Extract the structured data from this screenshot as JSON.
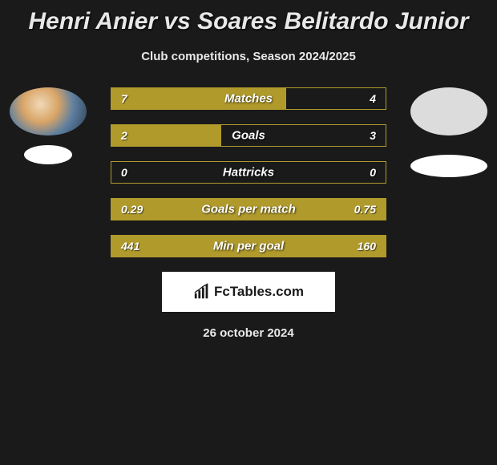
{
  "title": "Henri Anier vs Soares Belitardo Junior",
  "subtitle": "Club competitions, Season 2024/2025",
  "date": "26 october 2024",
  "logo_text": "FcTables.com",
  "colors": {
    "background": "#1a1a1a",
    "bar_fill": "#b09a2c",
    "bar_border": "#b09a2c",
    "text": "#ffffff"
  },
  "player_left": {
    "name": "Henri Anier",
    "has_photo": true
  },
  "player_right": {
    "name": "Soares Belitardo Junior",
    "has_photo": false
  },
  "stats": [
    {
      "label": "Matches",
      "left_val": "7",
      "right_val": "4",
      "left_pct": 63.6,
      "right_pct": 0,
      "left_fill_side": "left"
    },
    {
      "label": "Goals",
      "left_val": "2",
      "right_val": "3",
      "left_pct": 40,
      "right_pct": 0,
      "left_fill_side": "left"
    },
    {
      "label": "Hattricks",
      "left_val": "0",
      "right_val": "0",
      "left_pct": 0,
      "right_pct": 0,
      "left_fill_side": "left"
    },
    {
      "label": "Goals per match",
      "left_val": "0.29",
      "right_val": "0.75",
      "left_pct": 100,
      "right_pct": 0,
      "left_fill_side": "full"
    },
    {
      "label": "Min per goal",
      "left_val": "441",
      "right_val": "160",
      "left_pct": 100,
      "right_pct": 0,
      "left_fill_side": "full"
    }
  ]
}
